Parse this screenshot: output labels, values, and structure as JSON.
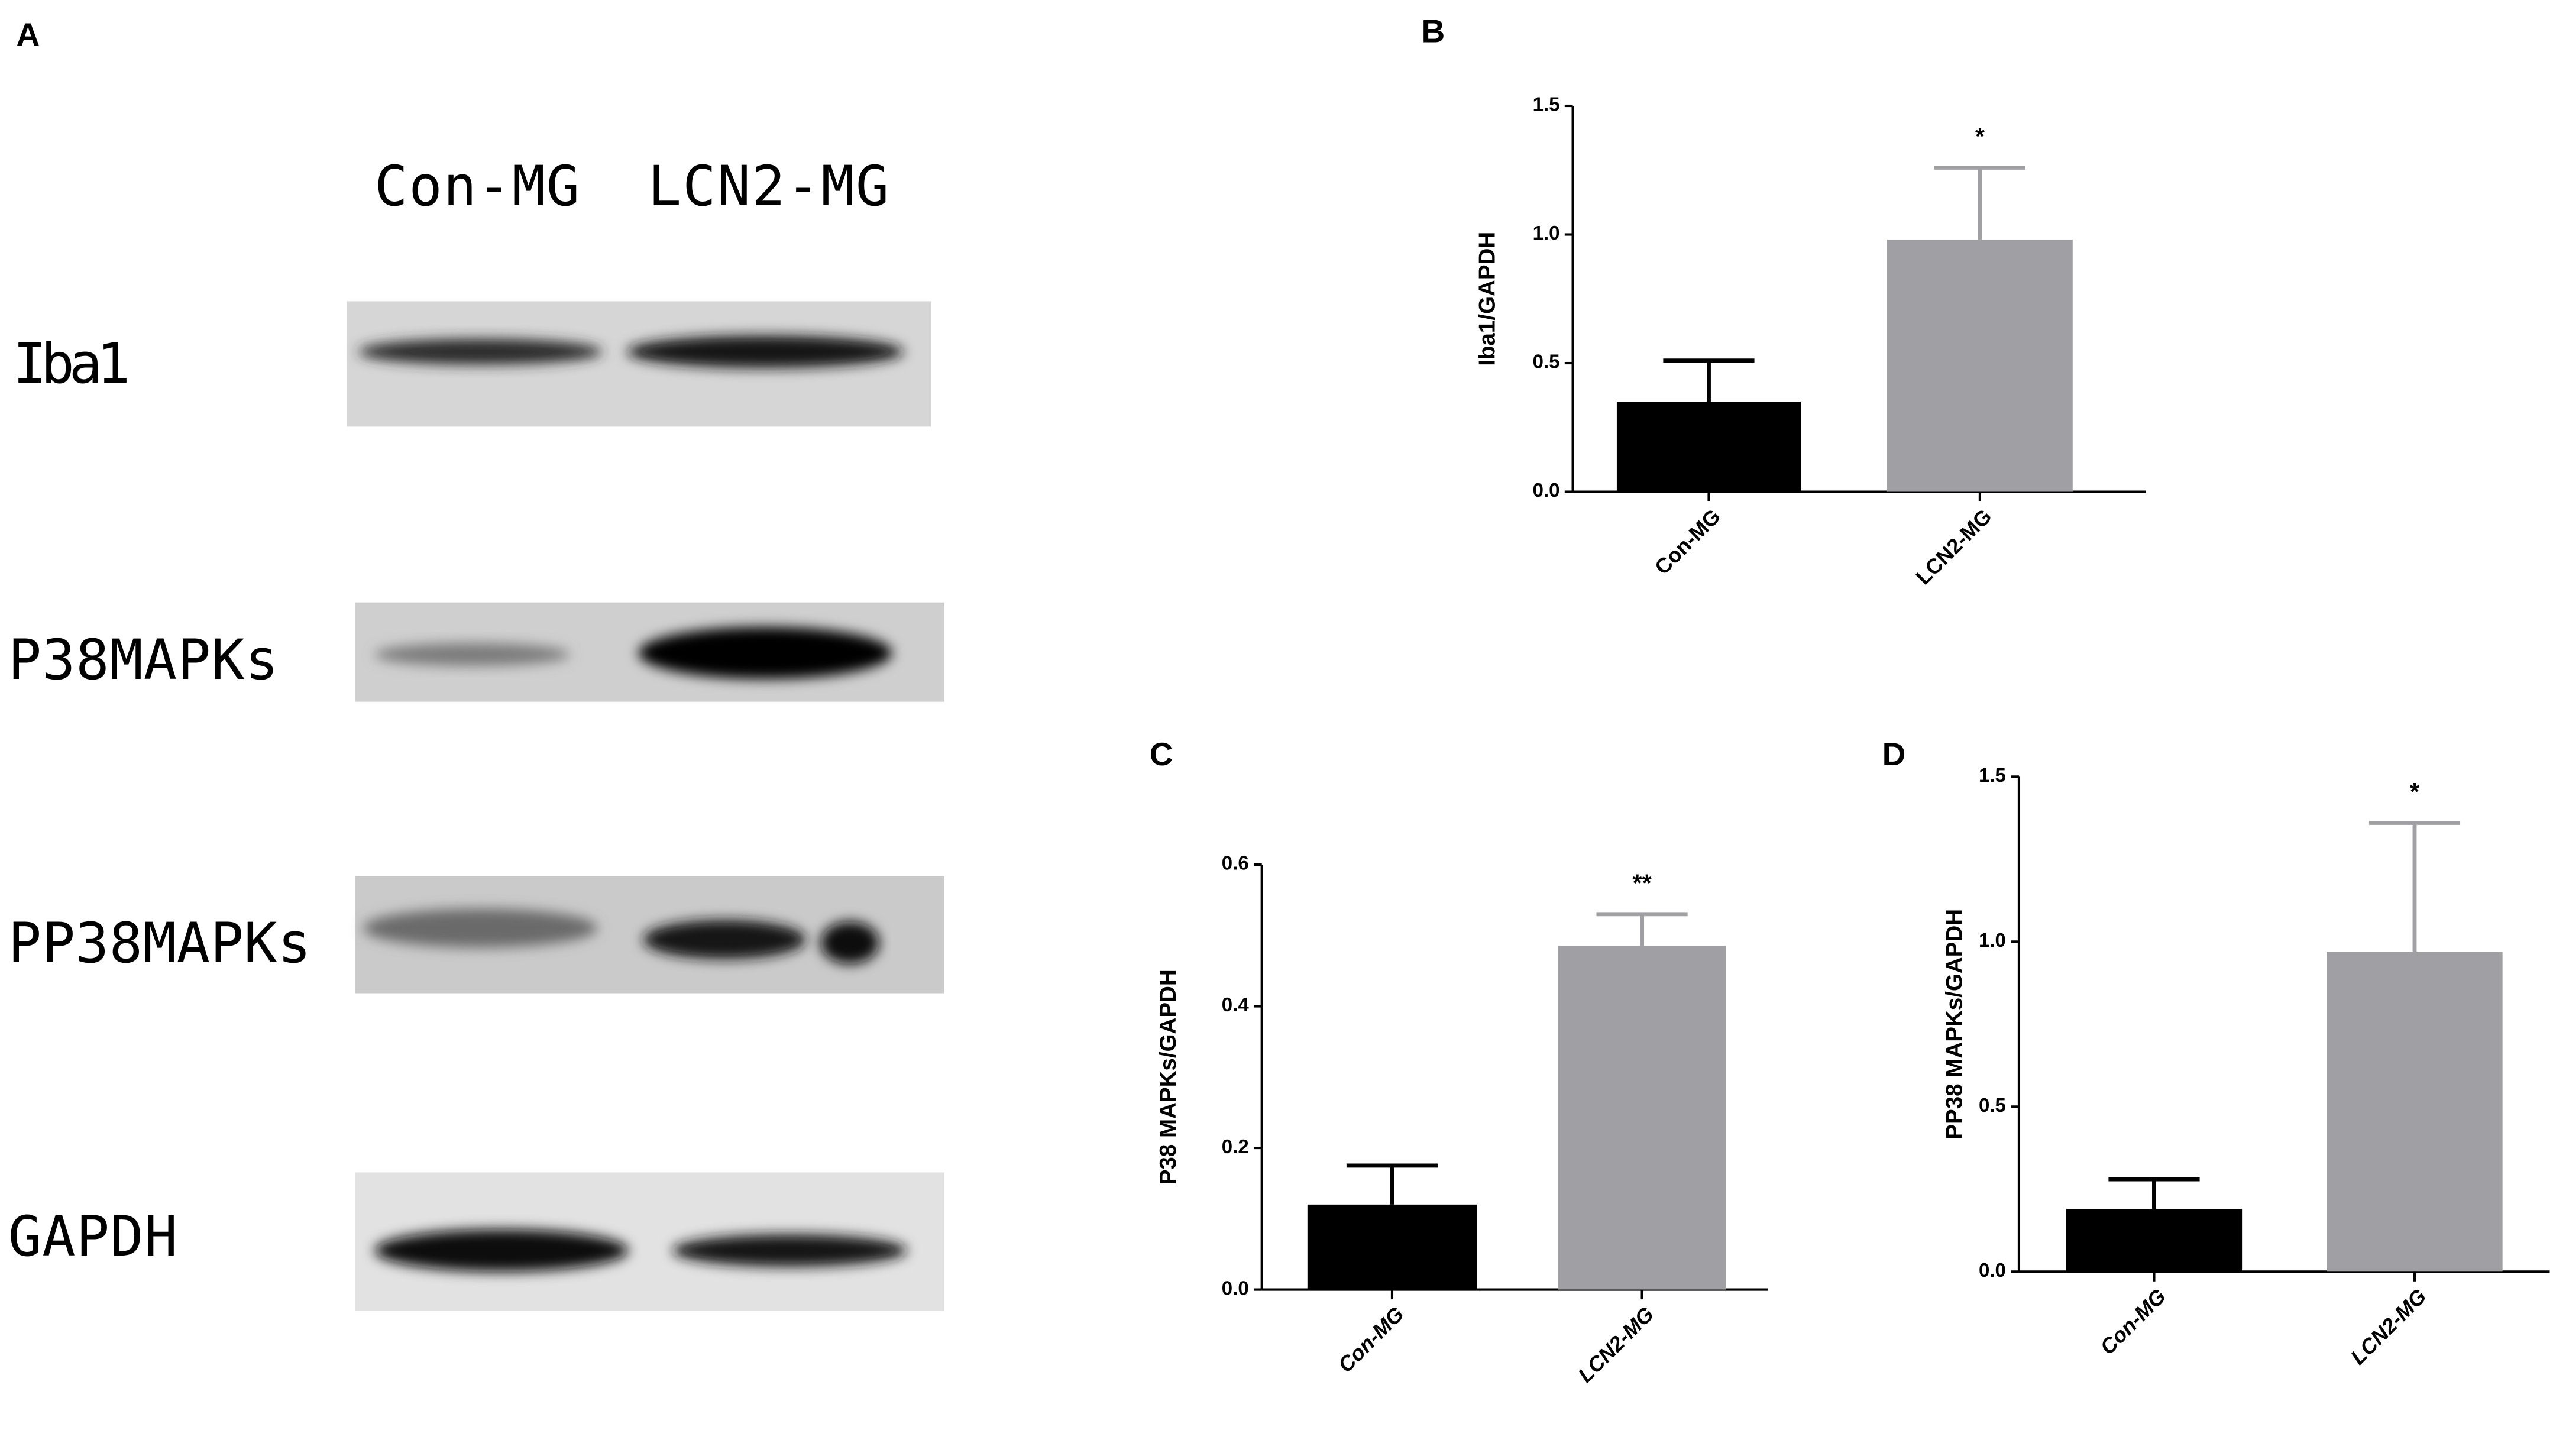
{
  "blot": {
    "panel_label": "A",
    "lanes": [
      "Con-MG",
      "LCN2-MG"
    ],
    "rows": [
      "Iba1",
      "P38MAPKs",
      "PP38MAPKs",
      "GAPDH"
    ]
  },
  "chart_data": [
    {
      "type": "bar",
      "panel_label": "B",
      "y_label": "Iba1/GAPDH",
      "categories": [
        "Con-MG",
        "LCN2-MG"
      ],
      "values": [
        0.35,
        0.98
      ],
      "errors": [
        0.16,
        0.28
      ],
      "colors": [
        "#000000",
        "#a0a0a4"
      ],
      "ylim": [
        0,
        1.5
      ],
      "yticks": [
        {
          "value": 0,
          "label": "0.0"
        },
        {
          "value": 0.5,
          "label": "0.5"
        },
        {
          "value": 1,
          "label": "1.0"
        },
        {
          "value": 1.5,
          "label": "1.5"
        }
      ],
      "annotations": [
        {
          "text": "*",
          "category": "LCN2-MG"
        }
      ]
    },
    {
      "type": "bar",
      "panel_label": "C",
      "y_label": "P38 MAPKs/GAPDH",
      "categories": [
        "Con-MG",
        "LCN2-MG"
      ],
      "values": [
        0.12,
        0.485
      ],
      "errors": [
        0.055,
        0.045
      ],
      "colors": [
        "#000000",
        "#a0a0a4"
      ],
      "ylim": [
        0,
        0.6
      ],
      "yticks": [
        {
          "value": 0,
          "label": "0.0"
        },
        0.2,
        0.4,
        0.6
      ],
      "annotations": [
        {
          "text": "**",
          "category": "LCN2-MG"
        }
      ]
    },
    {
      "type": "bar",
      "panel_label": "D",
      "y_label": "PP38 MAPKs/GAPDH",
      "categories": [
        "Con-MG",
        "LCN2-MG"
      ],
      "values": [
        0.19,
        0.97
      ],
      "errors": [
        0.09,
        0.39
      ],
      "colors": [
        "#000000",
        "#a0a0a4"
      ],
      "ylim": [
        0,
        1.5
      ],
      "yticks": [
        {
          "value": 0,
          "label": "0.0"
        },
        {
          "value": 0.5,
          "label": "0.5"
        },
        {
          "value": 1,
          "label": "1.0"
        },
        {
          "value": 1.5,
          "label": "1.5"
        }
      ],
      "annotations": [
        {
          "text": "*",
          "category": "LCN2-MG"
        }
      ]
    }
  ]
}
